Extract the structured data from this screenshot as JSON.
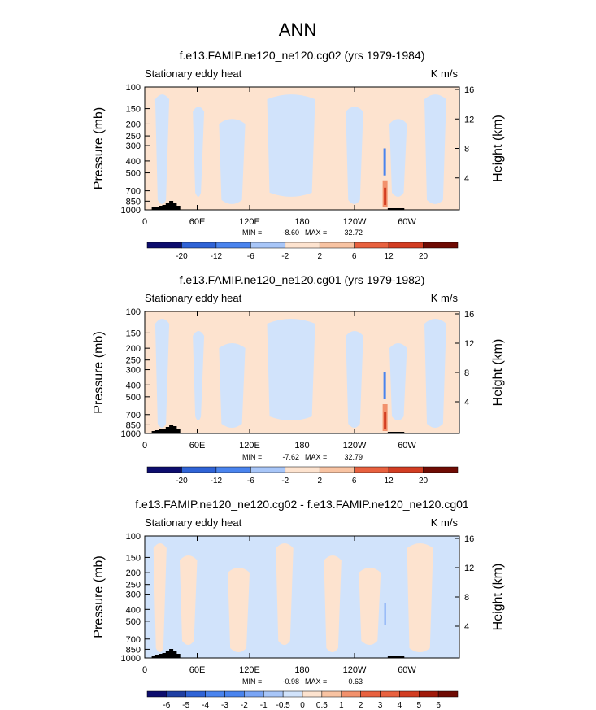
{
  "page_title": "ANN",
  "chart_data": [
    {
      "type": "heatmap",
      "title": "f.e13.FAMIP.ne120_ne120.cg02 (yrs 1979-1984)",
      "left_label": "Stationary eddy heat",
      "units": "K m/s",
      "ylabel": "Pressure (mb)",
      "ylabel_right": "Height (km)",
      "y_ticks": [
        100,
        150,
        200,
        250,
        300,
        400,
        500,
        700,
        850,
        1000
      ],
      "y_right_ticks": [
        4,
        8,
        12,
        16
      ],
      "x_ticks": [
        "0",
        "60E",
        "120E",
        "180",
        "120W",
        "60W"
      ],
      "stats": {
        "min_label": "MIN =",
        "min": "-8.60",
        "max_label": "MAX =",
        "max": "32.72"
      },
      "colorbar_labels": [
        "-20",
        "-12",
        "-6",
        "-2",
        "2",
        "6",
        "12",
        "20"
      ]
    },
    {
      "type": "heatmap",
      "title": "f.e13.FAMIP.ne120_ne120.cg01 (yrs 1979-1982)",
      "left_label": "Stationary eddy heat",
      "units": "K m/s",
      "ylabel": "Pressure (mb)",
      "ylabel_right": "Height (km)",
      "y_ticks": [
        100,
        150,
        200,
        250,
        300,
        400,
        500,
        700,
        850,
        1000
      ],
      "y_right_ticks": [
        4,
        8,
        12,
        16
      ],
      "x_ticks": [
        "0",
        "60E",
        "120E",
        "180",
        "120W",
        "60W"
      ],
      "stats": {
        "min_label": "MIN =",
        "min": "-7.62",
        "max_label": "MAX =",
        "max": "32.79"
      },
      "colorbar_labels": [
        "-20",
        "-12",
        "-6",
        "-2",
        "2",
        "6",
        "12",
        "20"
      ]
    },
    {
      "type": "heatmap",
      "title": "f.e13.FAMIP.ne120_ne120.cg02 - f.e13.FAMIP.ne120_ne120.cg01",
      "left_label": "Stationary eddy heat",
      "units": "K m/s",
      "ylabel": "Pressure (mb)",
      "ylabel_right": "Height (km)",
      "y_ticks": [
        100,
        150,
        200,
        250,
        300,
        400,
        500,
        700,
        850,
        1000
      ],
      "y_right_ticks": [
        4,
        8,
        12,
        16
      ],
      "x_ticks": [
        "0",
        "60E",
        "120E",
        "180",
        "120W",
        "60W"
      ],
      "stats": {
        "min_label": "MIN =",
        "min": "-0.98",
        "max_label": "MAX =",
        "max": "0.63"
      },
      "colorbar_labels": [
        "-6",
        "-5",
        "-4",
        "-3",
        "-2",
        "-1",
        "-0.5",
        "0",
        "0.5",
        "1",
        "2",
        "3",
        "4",
        "5",
        "6"
      ]
    }
  ],
  "colors": {
    "colorbar": [
      "#0d0d6e",
      "#1f3fa3",
      "#2f63d6",
      "#4a84ee",
      "#7aa5f5",
      "#a8c6f8",
      "#d1e3fb",
      "#fde3cf",
      "#f8c3a2",
      "#f2916c",
      "#e8613f",
      "#d23d22",
      "#a11a0a",
      "#6f0b04"
    ],
    "light_blue": "#d1e3fb",
    "light_orange": "#fde3cf"
  }
}
